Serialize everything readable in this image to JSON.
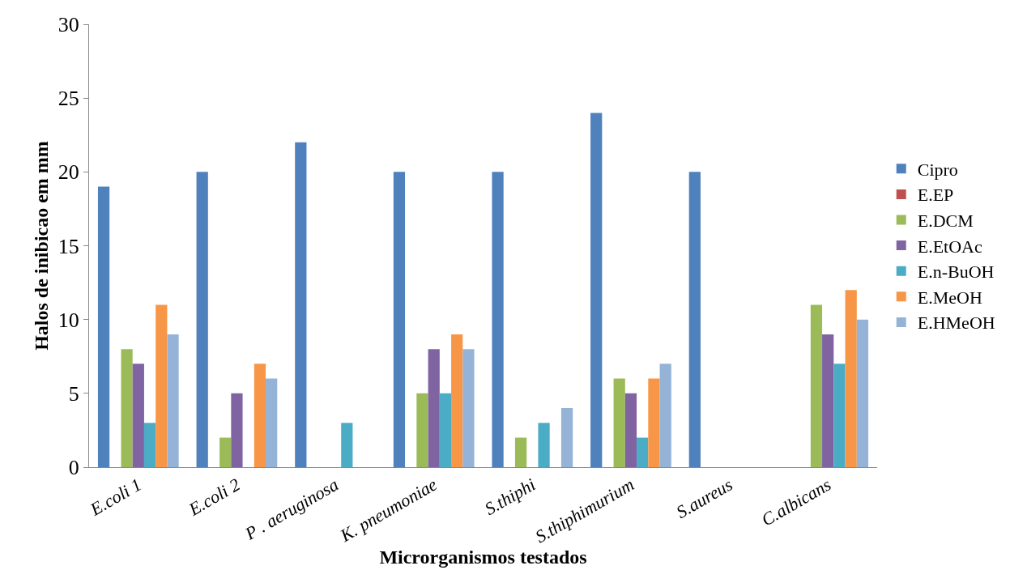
{
  "chart_data": {
    "type": "bar",
    "xlabel": "Microrganismos testados",
    "ylabel": "Halos de inibicao em mm",
    "categories": [
      "E.coli 1",
      "E.coli 2",
      "P . aeruginosa",
      "K. pneumoniae",
      "S.thiphi",
      "S.thiphimurium",
      "S.aureus",
      "C.albicans"
    ],
    "series": [
      {
        "name": "Cipro",
        "color": "#4f81bd",
        "values": [
          19,
          20,
          22,
          20,
          20,
          24,
          20,
          0
        ]
      },
      {
        "name": "E.EP",
        "color": "#c0504d",
        "values": [
          0,
          0,
          0,
          0,
          0,
          0,
          0,
          0
        ]
      },
      {
        "name": "E.DCM",
        "color": "#9bbb59",
        "values": [
          8,
          2,
          0,
          5,
          2,
          6,
          0,
          11
        ]
      },
      {
        "name": "E.EtOAc",
        "color": "#8064a2",
        "values": [
          7,
          5,
          0,
          8,
          0,
          5,
          0,
          9
        ]
      },
      {
        "name": "E.n-BuOH",
        "color": "#4bacc6",
        "values": [
          3,
          0,
          3,
          5,
          3,
          2,
          0,
          7
        ]
      },
      {
        "name": "E.MeOH",
        "color": "#f79646",
        "values": [
          11,
          7,
          0,
          9,
          0,
          6,
          0,
          12
        ]
      },
      {
        "name": "E.HMeOH",
        "color": "#95b3d7",
        "values": [
          9,
          6,
          0,
          8,
          4,
          7,
          0,
          10
        ]
      }
    ],
    "ylim": [
      0,
      30
    ],
    "yticks": [
      0,
      5,
      10,
      15,
      20,
      25,
      30
    ],
    "legend": "right"
  }
}
